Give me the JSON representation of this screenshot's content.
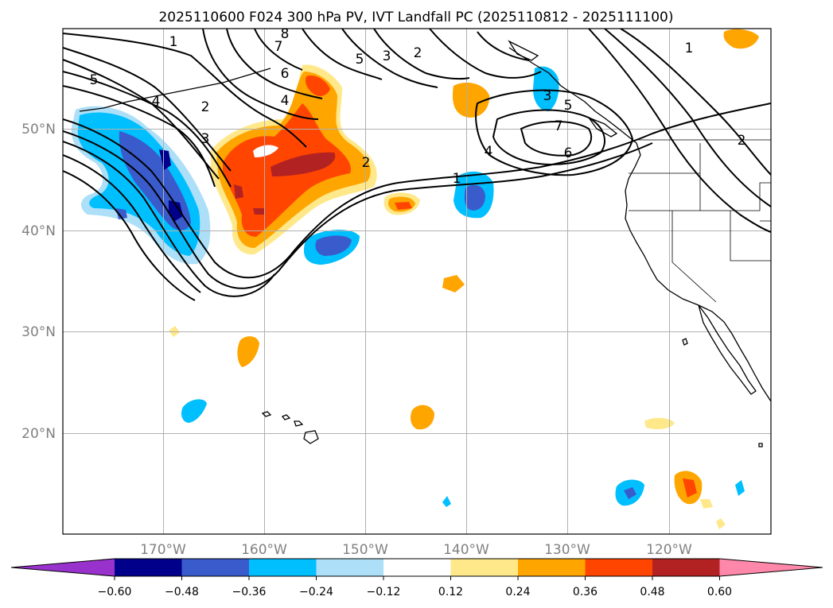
{
  "title": "2025110600 F024 300 hPa PV, IVT Landfall PC (2025110812 - 2025111100)",
  "map": {
    "lon_ticks": [
      "170°W",
      "160°W",
      "150°W",
      "140°W",
      "130°W",
      "120°W"
    ],
    "lat_ticks": [
      "50°N",
      "40°N",
      "30°N",
      "20°N"
    ],
    "contour_labels": [
      "1",
      "5",
      "4",
      "2",
      "3",
      "6",
      "7",
      "8",
      "4",
      "5",
      "3",
      "2",
      "4",
      "7",
      "6",
      "1",
      "5",
      "2",
      "3",
      "1",
      "2"
    ]
  },
  "colorbar": {
    "ticks": [
      "−0.60",
      "−0.48",
      "−0.36",
      "−0.24",
      "−0.12",
      "0.12",
      "0.24",
      "0.36",
      "0.48",
      "0.60"
    ],
    "colors": [
      "#9932CC",
      "#00008B",
      "#3A5BCC",
      "#00BFFF",
      "#ADDFF8",
      "#FFFFFF",
      "#FFE88A",
      "#FFA500",
      "#FF4500",
      "#B22222",
      "#FF88AA"
    ]
  }
}
